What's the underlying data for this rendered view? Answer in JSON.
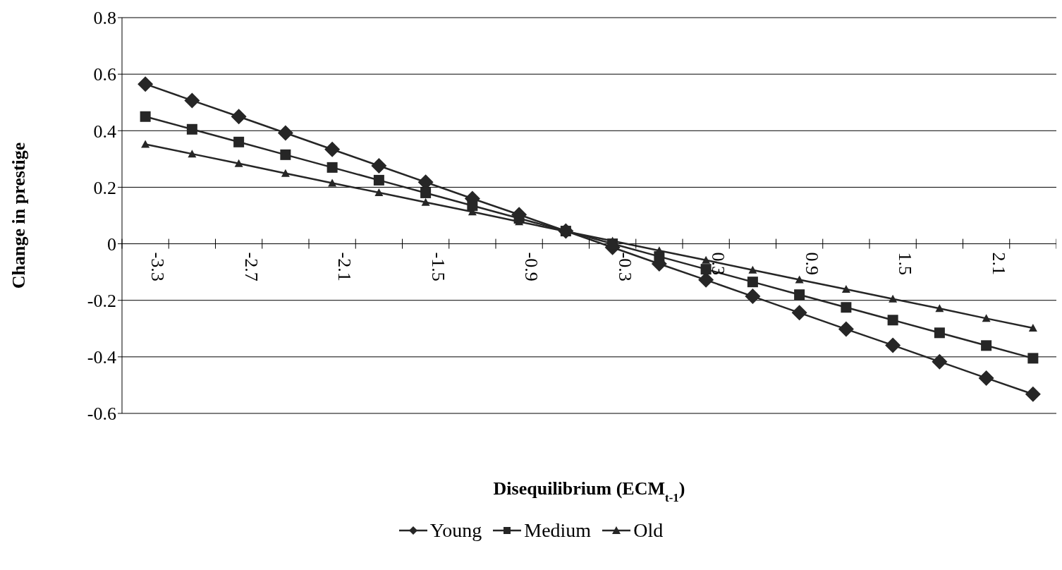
{
  "chart_data": {
    "type": "line",
    "xlabel": "Disequilibrium (ECM$_{t-1}$)",
    "ylabel": "Change in prestige",
    "categories": [
      "-3.3",
      null,
      "-2.7",
      null,
      "-2.1",
      null,
      "-1.5",
      null,
      "-0.9",
      null,
      "-0.3",
      null,
      "0.3",
      null,
      "0.9",
      null,
      "1.5",
      null,
      "2.1",
      null
    ],
    "series": [
      {
        "name": "Young",
        "color": "#262626",
        "marker": "diamond",
        "values": [
          0.565,
          0.507,
          0.45,
          0.392,
          0.334,
          0.276,
          0.218,
          0.16,
          0.103,
          0.045,
          -0.013,
          -0.071,
          -0.128,
          -0.186,
          -0.244,
          -0.302,
          -0.359,
          -0.417,
          -0.475,
          -0.532
        ]
      },
      {
        "name": "Medium",
        "color": "#262626",
        "marker": "square",
        "values": [
          0.45,
          0.405,
          0.36,
          0.315,
          0.27,
          0.225,
          0.18,
          0.135,
          0.09,
          0.045,
          0,
          -0.045,
          -0.09,
          -0.135,
          -0.18,
          -0.225,
          -0.27,
          -0.315,
          -0.36,
          -0.405
        ]
      },
      {
        "name": "Old",
        "color": "#262626",
        "marker": "triangle",
        "values": [
          0.352,
          0.318,
          0.284,
          0.249,
          0.215,
          0.181,
          0.147,
          0.113,
          0.078,
          0.044,
          0.01,
          -0.024,
          -0.058,
          -0.093,
          -0.127,
          -0.161,
          -0.195,
          -0.229,
          -0.264,
          -0.298
        ]
      }
    ],
    "ylim": [
      -0.6,
      0.8
    ],
    "yticks": [
      -0.6,
      -0.4,
      -0.2,
      0,
      0.2,
      0.4,
      0.6,
      0.8
    ],
    "grid": "y",
    "legend": "bottom",
    "line_style": "solid"
  }
}
